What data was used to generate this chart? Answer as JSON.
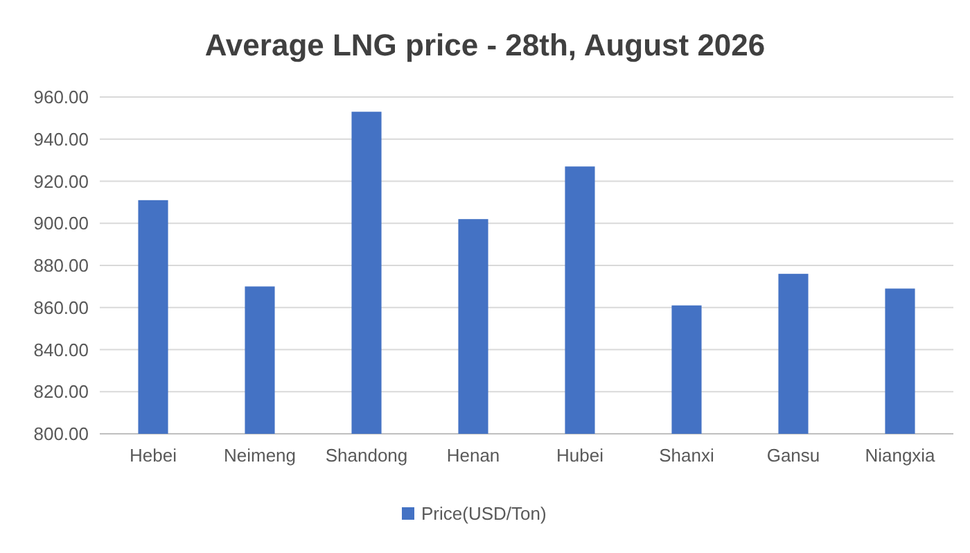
{
  "chart_data": {
    "type": "bar",
    "title": "Average LNG price - 28th, August 2026",
    "categories": [
      "Hebei",
      "Neimeng",
      "Shandong",
      "Henan",
      "Hubei",
      "Shanxi",
      "Gansu",
      "Niangxia"
    ],
    "series": [
      {
        "name": "Price(USD/Ton)",
        "color": "#4472c4",
        "values": [
          911,
          870,
          953,
          902,
          927,
          861,
          876,
          869
        ]
      }
    ],
    "ylim": [
      800,
      960
    ],
    "yticks": [
      {
        "value": 800,
        "label": "800.00"
      },
      {
        "value": 820,
        "label": "820.00"
      },
      {
        "value": 840,
        "label": "840.00"
      },
      {
        "value": 860,
        "label": "860.00"
      },
      {
        "value": 880,
        "label": "880.00"
      },
      {
        "value": 900,
        "label": "900.00"
      },
      {
        "value": 920,
        "label": "920.00"
      },
      {
        "value": 940,
        "label": "940.00"
      },
      {
        "value": 960,
        "label": "960.00"
      }
    ],
    "grid": "y",
    "legend": "bottom"
  }
}
